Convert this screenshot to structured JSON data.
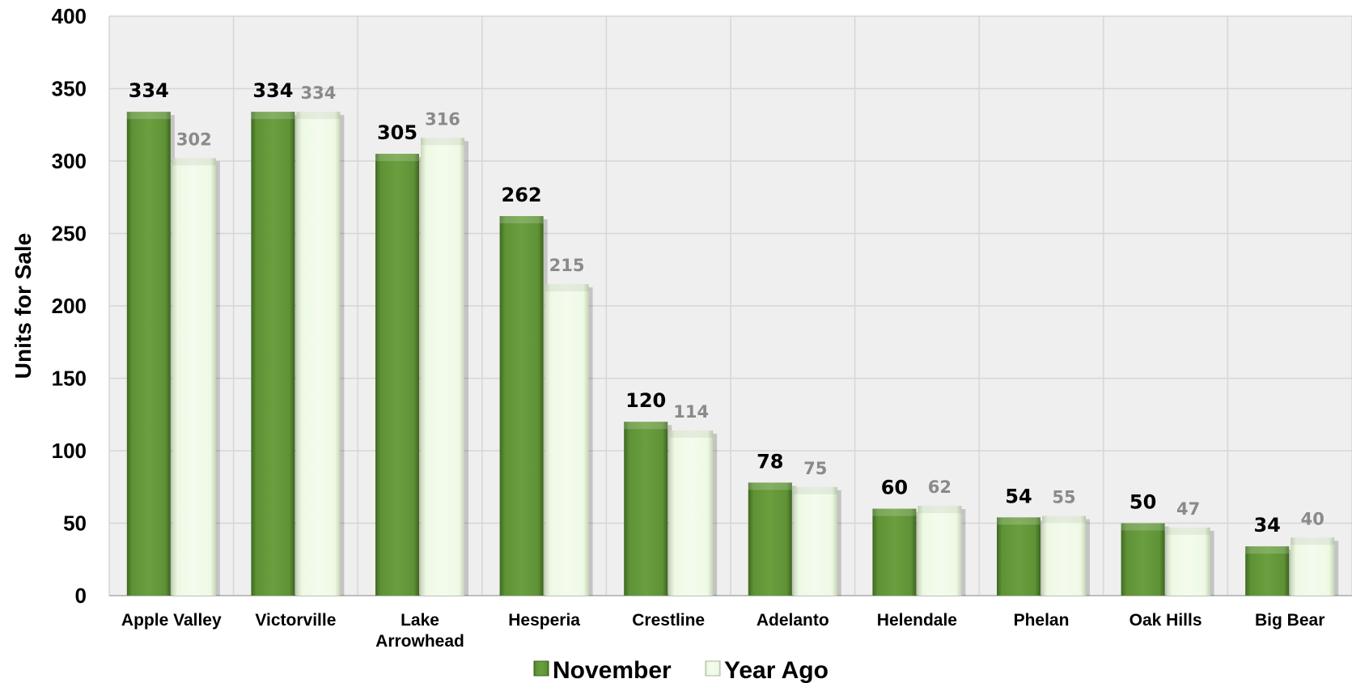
{
  "chart_data": {
    "type": "bar",
    "ylabel": "Units for Sale",
    "xlabel": "",
    "ylim": [
      0,
      400
    ],
    "yticks": [
      0,
      50,
      100,
      150,
      200,
      250,
      300,
      350,
      400
    ],
    "grid": true,
    "legend_position": "bottom",
    "categories": [
      [
        "Apple Valley"
      ],
      [
        "Victorville"
      ],
      [
        "Lake",
        "Arrowhead"
      ],
      [
        "Hesperia"
      ],
      [
        "Crestline"
      ],
      [
        "Adelanto"
      ],
      [
        "Helendale"
      ],
      [
        "Phelan"
      ],
      [
        "Oak Hills"
      ],
      [
        "Big Bear"
      ]
    ],
    "series": [
      {
        "name": "November",
        "values": [
          334,
          334,
          305,
          262,
          120,
          78,
          60,
          54,
          50,
          34
        ],
        "color": "#5a8a32",
        "label_color": "#000000"
      },
      {
        "name": "Year Ago",
        "values": [
          302,
          334,
          316,
          215,
          114,
          75,
          62,
          55,
          47,
          40
        ],
        "color": "#eaf7dd",
        "label_color": "#8a8a8a"
      }
    ]
  }
}
